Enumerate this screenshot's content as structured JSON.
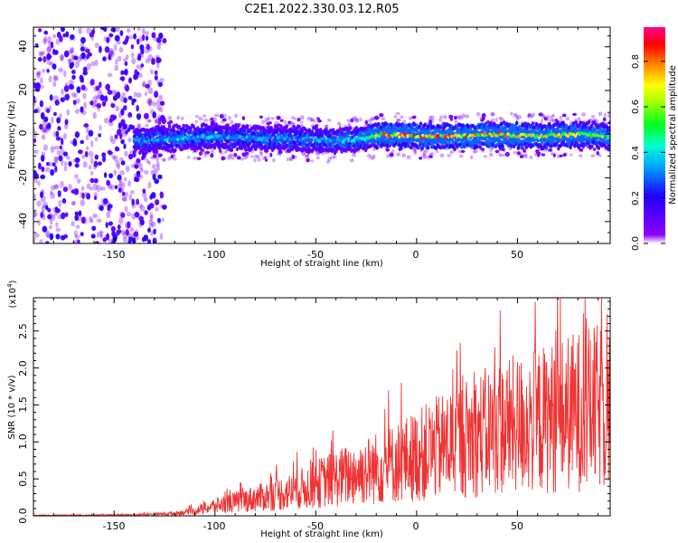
{
  "title": "C2E1.2022.330.03.12.R05",
  "chart_data": [
    {
      "type": "heatmap",
      "xlabel": "Height of straight line (km)",
      "ylabel": "Frequency (Hz)",
      "xlim": [
        -190,
        96
      ],
      "ylim": [
        -50,
        49
      ],
      "xticks": [
        -150,
        -100,
        -50,
        0,
        50
      ],
      "yticks": [
        -40,
        -20,
        0,
        20,
        40
      ],
      "colorbar": {
        "label": "Normalized spectral amplitude",
        "range": [
          0.0,
          0.95
        ],
        "ticks": [
          0.0,
          0.2,
          0.4,
          0.6,
          0.8
        ]
      },
      "band_profile": {
        "x": [
          -140,
          -120,
          -100,
          -80,
          -60,
          -40,
          -25,
          -18,
          0,
          20,
          40,
          60,
          80,
          96
        ],
        "center_freq": [
          -3,
          -2,
          -1,
          -2,
          -2,
          -3,
          -2,
          0,
          -1,
          -1,
          0,
          -1,
          0,
          -1
        ],
        "peak_amplitude": [
          0.35,
          0.45,
          0.4,
          0.4,
          0.4,
          0.45,
          0.5,
          0.9,
          0.9,
          0.9,
          0.9,
          0.8,
          0.75,
          0.6
        ]
      },
      "noise_region_x": [
        -190,
        -125
      ]
    },
    {
      "type": "line",
      "xlabel": "Height of straight line (km)",
      "ylabel": "SNR (10 * v/v)",
      "multiplier_label": "(x10",
      "multiplier_exponent": "4",
      "xlim": [
        -190,
        96
      ],
      "ylim": [
        0,
        2.95
      ],
      "xticks": [
        -150,
        -100,
        -50,
        0,
        50
      ],
      "yticks": [
        0.0,
        0.5,
        1.0,
        1.5,
        2.0,
        2.5
      ],
      "envelope": {
        "x": [
          -190,
          -140,
          -120,
          -110,
          -100,
          -80,
          -60,
          -45,
          -30,
          -15,
          0,
          20,
          40,
          60,
          80,
          96
        ],
        "y": [
          0.01,
          0.02,
          0.05,
          0.1,
          0.2,
          0.35,
          0.5,
          0.7,
          0.85,
          1.0,
          1.2,
          1.5,
          1.75,
          1.9,
          2.1,
          2.2
        ]
      },
      "color": "#ee3333"
    }
  ],
  "xtick_labels": [
    "-150",
    "-100",
    "-50",
    "0",
    "50"
  ],
  "top_ytick_labels": [
    "-40",
    "-20",
    "0",
    "20",
    "40"
  ],
  "bottom_ytick_labels": [
    "0.0",
    "0.5",
    "1.0",
    "1.5",
    "2.0",
    "2.5"
  ],
  "colorbar_tick_labels": [
    "0.0",
    "0.2",
    "0.4",
    "0.6",
    "0.8"
  ]
}
